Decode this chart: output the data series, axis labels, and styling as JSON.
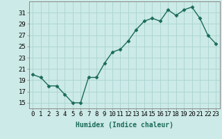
{
  "x": [
    0,
    1,
    2,
    3,
    4,
    5,
    6,
    7,
    8,
    9,
    10,
    11,
    12,
    13,
    14,
    15,
    16,
    17,
    18,
    19,
    20,
    21,
    22,
    23
  ],
  "y": [
    20,
    19.5,
    18,
    18,
    16.5,
    15,
    15,
    19.5,
    19.5,
    22,
    24,
    24.5,
    26,
    28,
    29.5,
    30,
    29.5,
    31.5,
    30.5,
    31.5,
    32,
    30,
    27,
    25.5
  ],
  "line_color": "#1a6b5a",
  "marker_color": "#1a6b5a",
  "bg_color": "#cceae7",
  "grid_color": "#aad4d0",
  "xlabel": "Humidex (Indice chaleur)",
  "ylabel": "",
  "xlim": [
    -0.5,
    23.5
  ],
  "ylim": [
    14,
    33
  ],
  "yticks": [
    15,
    17,
    19,
    21,
    23,
    25,
    27,
    29,
    31
  ],
  "xticks": [
    0,
    1,
    2,
    3,
    4,
    5,
    6,
    7,
    8,
    9,
    10,
    11,
    12,
    13,
    14,
    15,
    16,
    17,
    18,
    19,
    20,
    21,
    22,
    23
  ],
  "xlabel_fontsize": 7,
  "tick_fontsize": 6.5,
  "line_width": 1.0,
  "marker_size": 2.5
}
